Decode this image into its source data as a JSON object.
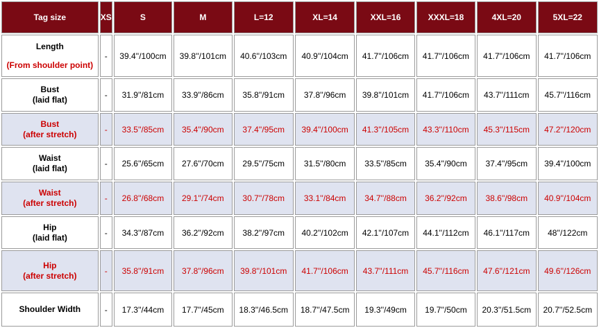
{
  "table": {
    "header": [
      "Tag size",
      "XS",
      "S",
      "M",
      "L=12",
      "XL=14",
      "XXL=16",
      "XXXL=18",
      "4XL=20",
      "5XL=22"
    ],
    "rows": [
      {
        "label": [
          {
            "text": "Length",
            "color": "#000000"
          },
          {
            "text": "(From shoulder point)",
            "color": "#cc0000"
          }
        ],
        "color": "#000000",
        "background": "#ffffff",
        "cells": [
          "-",
          "39.4''/100cm",
          "39.8''/101cm",
          "40.6''/103cm",
          "40.9''/104cm",
          "41.7''/106cm",
          "41.7''/106cm",
          "41.7''/106cm",
          "41.7''/106cm"
        ]
      },
      {
        "label": [
          {
            "text": "Bust",
            "color": "#000000"
          },
          {
            "text": "(laid flat)",
            "color": "#000000"
          }
        ],
        "color": "#000000",
        "background": "#ffffff",
        "cells": [
          "-",
          "31.9''/81cm",
          "33.9''/86cm",
          "35.8''/91cm",
          "37.8''/96cm",
          "39.8''/101cm",
          "41.7''/106cm",
          "43.7''/111cm",
          "45.7''/116cm"
        ]
      },
      {
        "label": [
          {
            "text": "Bust",
            "color": "#cc0000"
          },
          {
            "text": "(after stretch)",
            "color": "#cc0000"
          }
        ],
        "color": "#cc0000",
        "background": "#dfe3f0",
        "cells": [
          "-",
          "33.5''/85cm",
          "35.4''/90cm",
          "37.4''/95cm",
          "39.4''/100cm",
          "41.3''/105cm",
          "43.3''/110cm",
          "45.3''/115cm",
          "47.2''/120cm"
        ]
      },
      {
        "label": [
          {
            "text": "Waist",
            "color": "#000000"
          },
          {
            "text": "(laid flat)",
            "color": "#000000"
          }
        ],
        "color": "#000000",
        "background": "#ffffff",
        "cells": [
          "-",
          "25.6''/65cm",
          "27.6''/70cm",
          "29.5''/75cm",
          "31.5''/80cm",
          "33.5''/85cm",
          "35.4''/90cm",
          "37.4''/95cm",
          "39.4''/100cm"
        ]
      },
      {
        "label": [
          {
            "text": "Waist",
            "color": "#cc0000"
          },
          {
            "text": "(after stretch)",
            "color": "#cc0000"
          }
        ],
        "color": "#cc0000",
        "background": "#dfe3f0",
        "cells": [
          "-",
          "26.8''/68cm",
          "29.1''/74cm",
          "30.7''/78cm",
          "33.1''/84cm",
          "34.7''/88cm",
          "36.2''/92cm",
          "38.6''/98cm",
          "40.9''/104cm"
        ]
      },
      {
        "label": [
          {
            "text": "Hip",
            "color": "#000000"
          },
          {
            "text": "(laid flat)",
            "color": "#000000"
          }
        ],
        "color": "#000000",
        "background": "#ffffff",
        "cells": [
          "-",
          "34.3''/87cm",
          "36.2''/92cm",
          "38.2''/97cm",
          "40.2''/102cm",
          "42.1''/107cm",
          "44.1''/112cm",
          "46.1''/117cm",
          "48''/122cm"
        ]
      },
      {
        "label": [
          {
            "text": "Hip",
            "color": "#cc0000"
          },
          {
            "text": "(after stretch)",
            "color": "#cc0000"
          }
        ],
        "color": "#cc0000",
        "background": "#dfe3f0",
        "cells": [
          "-",
          "35.8''/91cm",
          "37.8''/96cm",
          "39.8''/101cm",
          "41.7''/106cm",
          "43.7''/111cm",
          "45.7''/116cm",
          "47.6''/121cm",
          "49.6''/126cm"
        ]
      },
      {
        "label": [
          {
            "text": "Shoulder Width",
            "color": "#000000"
          }
        ],
        "color": "#000000",
        "background": "#ffffff",
        "cells": [
          "-",
          "17.3''/44cm",
          "17.7''/45cm",
          "18.3''/46.5cm",
          "18.7''/47.5cm",
          "19.3''/49cm",
          "19.7''/50cm",
          "20.3''/51.5cm",
          "20.7''/52.5cm"
        ]
      }
    ],
    "header_background": "#7a0a14",
    "header_color": "#ffffff"
  }
}
